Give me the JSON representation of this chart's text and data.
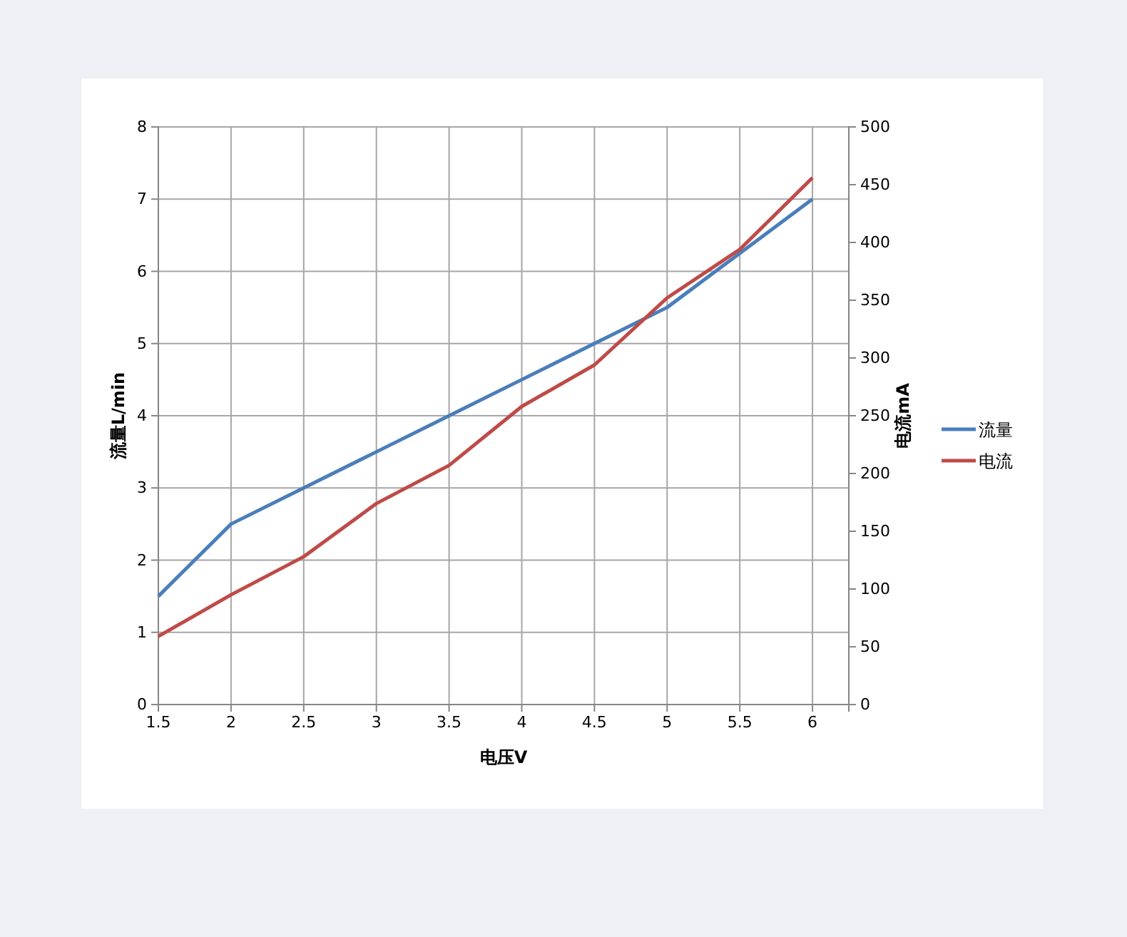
{
  "chart_data": {
    "type": "line",
    "xlabel": "电压V",
    "ylabel": "流量L/min",
    "y2label": "电流mA",
    "x": [
      1.5,
      2,
      2.5,
      3,
      3.5,
      4,
      4.5,
      5,
      5.5,
      6
    ],
    "xlim": [
      1.5,
      6.25
    ],
    "xticks": [
      1.5,
      2,
      2.5,
      3,
      3.5,
      4,
      4.5,
      5,
      5.5,
      6
    ],
    "ylim": [
      0,
      8
    ],
    "yticks": [
      0,
      1,
      2,
      3,
      4,
      5,
      6,
      7,
      8
    ],
    "y2lim": [
      0,
      500
    ],
    "y2ticks": [
      0,
      50,
      100,
      150,
      200,
      250,
      300,
      350,
      400,
      450,
      500
    ],
    "grid": true,
    "legend": "right",
    "marker": "none",
    "line_style": "solid",
    "series": [
      {
        "name": "流量",
        "color": "#4a7ebb",
        "values": [
          1.5,
          2.5,
          3,
          3.5,
          4,
          4.5,
          5,
          5.5,
          6.25,
          7
        ]
      },
      {
        "name": "电流",
        "color": "#be4b48",
        "axis": "y2",
        "values": [
          59,
          95,
          128,
          174,
          207,
          258,
          294,
          352,
          394,
          456
        ]
      }
    ]
  }
}
